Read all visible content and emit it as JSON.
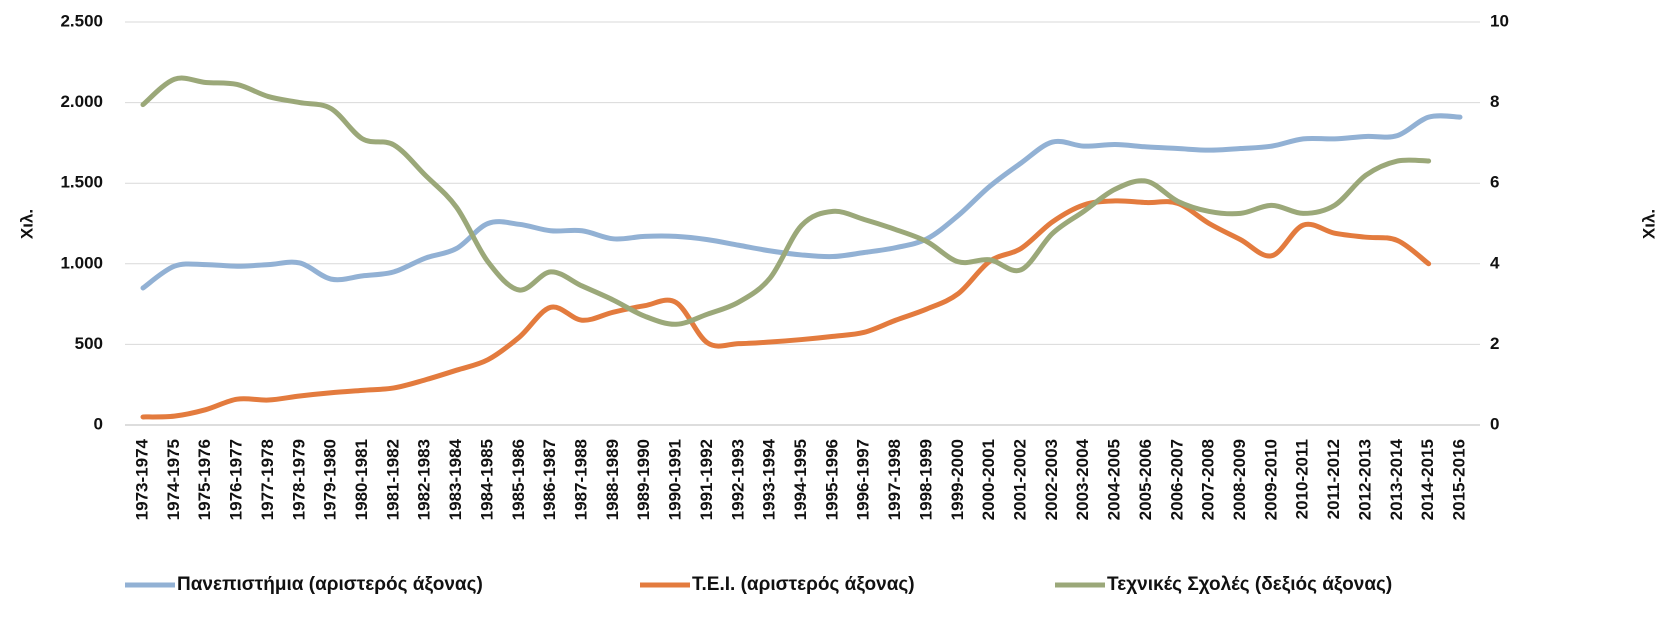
{
  "chart_data": {
    "type": "line",
    "y_label": "Χιλ.",
    "y2_label": "Χιλ.",
    "categories": [
      "1973-1974",
      "1974-1975",
      "1975-1976",
      "1976-1977",
      "1977-1978",
      "1978-1979",
      "1979-1980",
      "1980-1981",
      "1981-1982",
      "1982-1983",
      "1983-1984",
      "1984-1985",
      "1985-1986",
      "1986-1987",
      "1987-1988",
      "1988-1989",
      "1989-1990",
      "1990-1991",
      "1991-1992",
      "1992-1993",
      "1993-1994",
      "1994-1995",
      "1995-1996",
      "1996-1997",
      "1997-1998",
      "1998-1999",
      "1999-2000",
      "2000-2001",
      "2001-2002",
      "2002-2003",
      "2003-2004",
      "2004-2005",
      "2005-2006",
      "2006-2007",
      "2007-2008",
      "2008-2009",
      "2009-2010",
      "2010-2011",
      "2011-2012",
      "2012-2013",
      "2013-2014",
      "2014-2015",
      "2015-2016"
    ],
    "series": [
      {
        "name": "Πανεπιστήμια (αριστερός άξονας)",
        "color": "#92b1d4",
        "values": [
          850,
          985,
          995,
          985,
          995,
          1005,
          905,
          925,
          950,
          1035,
          1095,
          1250,
          1245,
          1205,
          1205,
          1155,
          1170,
          1170,
          1150,
          1115,
          1080,
          1055,
          1045,
          1070,
          1100,
          1155,
          1300,
          1480,
          1625,
          1755,
          1730,
          1740,
          1725,
          1715,
          1705,
          1715,
          1730,
          1775,
          1775,
          1790,
          1795,
          1910,
          1910
        ]
      },
      {
        "name": "Τ.Ε.Ι. (αριστερός άξονας)",
        "color": "#e37b3e",
        "values": [
          50,
          55,
          95,
          160,
          155,
          180,
          200,
          215,
          230,
          280,
          340,
          405,
          545,
          730,
          650,
          700,
          740,
          760,
          510,
          505,
          515,
          530,
          550,
          575,
          650,
          720,
          815,
          1015,
          1095,
          1260,
          1365,
          1390,
          1380,
          1375,
          1250,
          1150,
          1050,
          1240,
          1190,
          1165,
          1145,
          1000,
          null
        ]
      },
      {
        "name": "Τεχνικές Σχολές (δεξιός άξονας)",
        "color": "#9ba879",
        "axis": "y2",
        "values": [
          7.95,
          8.58,
          8.5,
          8.45,
          8.15,
          8.0,
          7.85,
          7.1,
          6.95,
          6.2,
          5.4,
          4.05,
          3.35,
          3.8,
          3.45,
          3.1,
          2.7,
          2.5,
          2.75,
          3.05,
          3.65,
          4.95,
          5.3,
          5.1,
          4.85,
          4.55,
          4.05,
          4.1,
          3.85,
          4.75,
          5.3,
          5.85,
          6.05,
          5.55,
          5.3,
          5.25,
          5.45,
          5.25,
          5.45,
          6.2,
          6.55,
          6.55,
          null
        ]
      }
    ],
    "ylim": [
      0,
      2500
    ],
    "yticks": [
      0,
      500,
      {
        "value": 1000,
        "label": "1.000"
      },
      {
        "value": 1500,
        "label": "1.500"
      },
      {
        "value": 2000,
        "label": "2.000"
      },
      {
        "value": 2500,
        "label": "2.500"
      }
    ],
    "y2lim": [
      0,
      10
    ],
    "y2ticks": [
      0,
      2,
      4,
      6,
      8,
      10
    ],
    "grid": true,
    "legend": "bottom"
  }
}
